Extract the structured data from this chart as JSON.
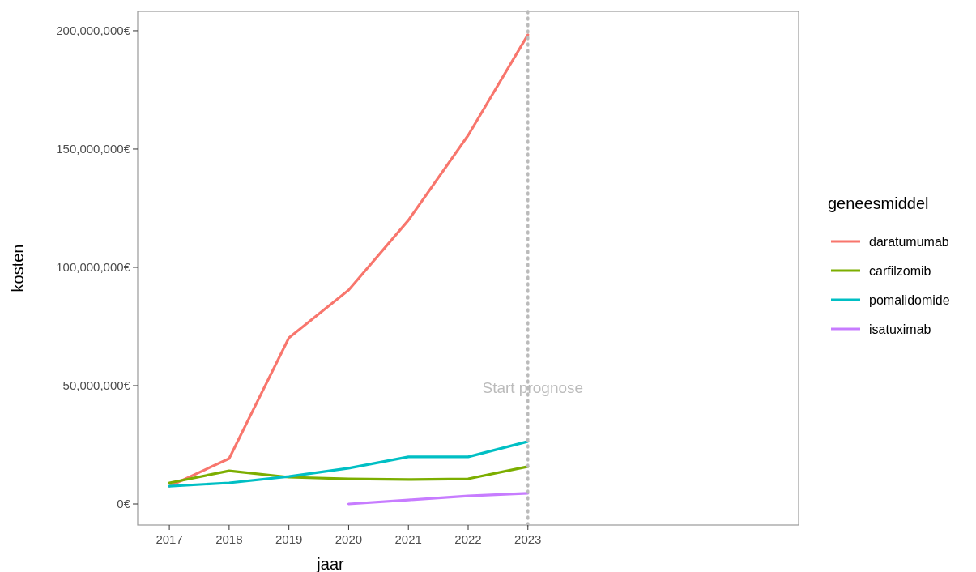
{
  "chart_data": {
    "type": "line",
    "xlabel": "jaar",
    "ylabel": "kosten",
    "legend_title": "geneesmiddel",
    "legend": "right",
    "grid": false,
    "line_style": "solid",
    "marker": "none",
    "x": [
      2017,
      2018,
      2019,
      2020,
      2021,
      2022,
      2023
    ],
    "xlim": [
      2016.47,
      2027.53
    ],
    "xticks": [
      2017,
      2018,
      2019,
      2020,
      2021,
      2022,
      2023
    ],
    "ylim": [
      -8900000,
      208200000
    ],
    "yticks": [
      {
        "value": 0,
        "label": "0€"
      },
      {
        "value": 50000000,
        "label": "50,000,000€"
      },
      {
        "value": 100000000,
        "label": "100,000,000€"
      },
      {
        "value": 150000000,
        "label": "150,000,000€"
      },
      {
        "value": 200000000,
        "label": "200,000,000€"
      }
    ],
    "series": [
      {
        "name": "daratumumab",
        "color": "#f8766d",
        "values": [
          7500000,
          19200000,
          70200000,
          90400000,
          119900000,
          155800000,
          198300000
        ]
      },
      {
        "name": "carfilzomib",
        "color": "#7cae00",
        "values": [
          8900000,
          14000000,
          11300000,
          10600000,
          10300000,
          10600000,
          15800000
        ]
      },
      {
        "name": "pomalidomide",
        "color": "#00bfc4",
        "values": [
          7500000,
          8900000,
          11600000,
          15100000,
          19900000,
          19900000,
          26400000
        ]
      },
      {
        "name": "isatuximab",
        "color": "#c77cff",
        "values": [
          null,
          null,
          null,
          0,
          1700000,
          3400000,
          4500000
        ]
      }
    ],
    "ref_lines": [
      {
        "axis": "x",
        "value": 2023,
        "label": "Start prognose",
        "color": "#bbbbbb",
        "line_style": "dotted"
      }
    ]
  }
}
